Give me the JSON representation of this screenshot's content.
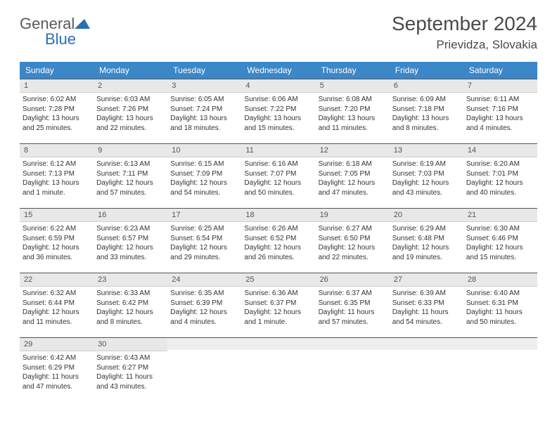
{
  "logo": {
    "text1": "General",
    "text2": "Blue"
  },
  "title": "September 2024",
  "location": "Prievidza, Slovakia",
  "colors": {
    "header_bg": "#3b87c8",
    "header_text": "#ffffff",
    "daynum_bg": "#e8e8e8",
    "daynum_border_top": "#555555",
    "body_text": "#333333",
    "logo_gray": "#5a5a5a",
    "logo_blue": "#2b6fb3"
  },
  "weekdays": [
    "Sunday",
    "Monday",
    "Tuesday",
    "Wednesday",
    "Thursday",
    "Friday",
    "Saturday"
  ],
  "weeks": [
    [
      {
        "day": "1",
        "sunrise": "6:02 AM",
        "sunset": "7:28 PM",
        "daylight": "13 hours and 25 minutes."
      },
      {
        "day": "2",
        "sunrise": "6:03 AM",
        "sunset": "7:26 PM",
        "daylight": "13 hours and 22 minutes."
      },
      {
        "day": "3",
        "sunrise": "6:05 AM",
        "sunset": "7:24 PM",
        "daylight": "13 hours and 18 minutes."
      },
      {
        "day": "4",
        "sunrise": "6:06 AM",
        "sunset": "7:22 PM",
        "daylight": "13 hours and 15 minutes."
      },
      {
        "day": "5",
        "sunrise": "6:08 AM",
        "sunset": "7:20 PM",
        "daylight": "13 hours and 11 minutes."
      },
      {
        "day": "6",
        "sunrise": "6:09 AM",
        "sunset": "7:18 PM",
        "daylight": "13 hours and 8 minutes."
      },
      {
        "day": "7",
        "sunrise": "6:11 AM",
        "sunset": "7:16 PM",
        "daylight": "13 hours and 4 minutes."
      }
    ],
    [
      {
        "day": "8",
        "sunrise": "6:12 AM",
        "sunset": "7:13 PM",
        "daylight": "13 hours and 1 minute."
      },
      {
        "day": "9",
        "sunrise": "6:13 AM",
        "sunset": "7:11 PM",
        "daylight": "12 hours and 57 minutes."
      },
      {
        "day": "10",
        "sunrise": "6:15 AM",
        "sunset": "7:09 PM",
        "daylight": "12 hours and 54 minutes."
      },
      {
        "day": "11",
        "sunrise": "6:16 AM",
        "sunset": "7:07 PM",
        "daylight": "12 hours and 50 minutes."
      },
      {
        "day": "12",
        "sunrise": "6:18 AM",
        "sunset": "7:05 PM",
        "daylight": "12 hours and 47 minutes."
      },
      {
        "day": "13",
        "sunrise": "6:19 AM",
        "sunset": "7:03 PM",
        "daylight": "12 hours and 43 minutes."
      },
      {
        "day": "14",
        "sunrise": "6:20 AM",
        "sunset": "7:01 PM",
        "daylight": "12 hours and 40 minutes."
      }
    ],
    [
      {
        "day": "15",
        "sunrise": "6:22 AM",
        "sunset": "6:59 PM",
        "daylight": "12 hours and 36 minutes."
      },
      {
        "day": "16",
        "sunrise": "6:23 AM",
        "sunset": "6:57 PM",
        "daylight": "12 hours and 33 minutes."
      },
      {
        "day": "17",
        "sunrise": "6:25 AM",
        "sunset": "6:54 PM",
        "daylight": "12 hours and 29 minutes."
      },
      {
        "day": "18",
        "sunrise": "6:26 AM",
        "sunset": "6:52 PM",
        "daylight": "12 hours and 26 minutes."
      },
      {
        "day": "19",
        "sunrise": "6:27 AM",
        "sunset": "6:50 PM",
        "daylight": "12 hours and 22 minutes."
      },
      {
        "day": "20",
        "sunrise": "6:29 AM",
        "sunset": "6:48 PM",
        "daylight": "12 hours and 19 minutes."
      },
      {
        "day": "21",
        "sunrise": "6:30 AM",
        "sunset": "6:46 PM",
        "daylight": "12 hours and 15 minutes."
      }
    ],
    [
      {
        "day": "22",
        "sunrise": "6:32 AM",
        "sunset": "6:44 PM",
        "daylight": "12 hours and 11 minutes."
      },
      {
        "day": "23",
        "sunrise": "6:33 AM",
        "sunset": "6:42 PM",
        "daylight": "12 hours and 8 minutes."
      },
      {
        "day": "24",
        "sunrise": "6:35 AM",
        "sunset": "6:39 PM",
        "daylight": "12 hours and 4 minutes."
      },
      {
        "day": "25",
        "sunrise": "6:36 AM",
        "sunset": "6:37 PM",
        "daylight": "12 hours and 1 minute."
      },
      {
        "day": "26",
        "sunrise": "6:37 AM",
        "sunset": "6:35 PM",
        "daylight": "11 hours and 57 minutes."
      },
      {
        "day": "27",
        "sunrise": "6:39 AM",
        "sunset": "6:33 PM",
        "daylight": "11 hours and 54 minutes."
      },
      {
        "day": "28",
        "sunrise": "6:40 AM",
        "sunset": "6:31 PM",
        "daylight": "11 hours and 50 minutes."
      }
    ],
    [
      {
        "day": "29",
        "sunrise": "6:42 AM",
        "sunset": "6:29 PM",
        "daylight": "11 hours and 47 minutes."
      },
      {
        "day": "30",
        "sunrise": "6:43 AM",
        "sunset": "6:27 PM",
        "daylight": "11 hours and 43 minutes."
      },
      null,
      null,
      null,
      null,
      null
    ]
  ],
  "labels": {
    "sunrise_prefix": "Sunrise: ",
    "sunset_prefix": "Sunset: ",
    "daylight_prefix": "Daylight: "
  }
}
